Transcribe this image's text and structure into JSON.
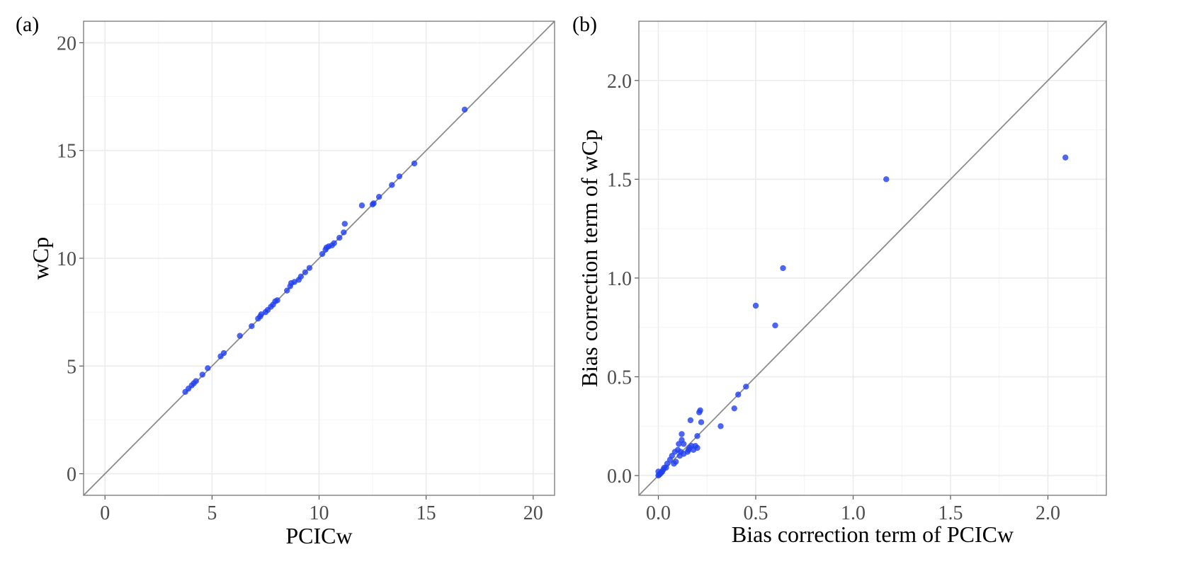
{
  "chart_data": [
    {
      "type": "scatter",
      "panel_label": "(a)",
      "xlabel": "PCICw",
      "ylabel": "wCp",
      "xlim": [
        -1,
        21
      ],
      "ylim": [
        -1,
        21
      ],
      "xticks": [
        0,
        5,
        10,
        15,
        20
      ],
      "yticks": [
        0,
        5,
        10,
        15,
        20
      ],
      "xtick_labels": [
        "0",
        "5",
        "10",
        "15",
        "20"
      ],
      "ytick_labels": [
        "0",
        "5",
        "10",
        "15",
        "20"
      ],
      "reference_line": "y = x",
      "grid": true,
      "point_color": "#1f3ef0",
      "line_color": "#8c8c8c",
      "points": [
        [
          3.75,
          3.8
        ],
        [
          3.9,
          3.95
        ],
        [
          4.05,
          4.1
        ],
        [
          4.15,
          4.2
        ],
        [
          4.25,
          4.3
        ],
        [
          4.55,
          4.6
        ],
        [
          4.8,
          4.9
        ],
        [
          5.4,
          5.45
        ],
        [
          5.55,
          5.6
        ],
        [
          6.3,
          6.4
        ],
        [
          6.85,
          6.85
        ],
        [
          7.15,
          7.2
        ],
        [
          7.25,
          7.3
        ],
        [
          7.3,
          7.4
        ],
        [
          7.5,
          7.5
        ],
        [
          7.6,
          7.6
        ],
        [
          7.75,
          7.75
        ],
        [
          7.85,
          7.85
        ],
        [
          7.95,
          8.0
        ],
        [
          8.05,
          8.05
        ],
        [
          8.5,
          8.5
        ],
        [
          8.65,
          8.7
        ],
        [
          8.7,
          8.85
        ],
        [
          8.85,
          8.9
        ],
        [
          9.05,
          9.0
        ],
        [
          9.15,
          9.15
        ],
        [
          9.35,
          9.35
        ],
        [
          9.55,
          9.55
        ],
        [
          10.15,
          10.2
        ],
        [
          10.3,
          10.4
        ],
        [
          10.35,
          10.5
        ],
        [
          10.45,
          10.55
        ],
        [
          10.6,
          10.6
        ],
        [
          10.7,
          10.7
        ],
        [
          10.95,
          10.95
        ],
        [
          11.15,
          11.2
        ],
        [
          11.2,
          11.6
        ],
        [
          12.0,
          12.45
        ],
        [
          12.5,
          12.5
        ],
        [
          12.55,
          12.55
        ],
        [
          12.8,
          12.85
        ],
        [
          13.4,
          13.4
        ],
        [
          13.75,
          13.8
        ],
        [
          14.45,
          14.4
        ],
        [
          16.8,
          16.9
        ]
      ]
    },
    {
      "type": "scatter",
      "panel_label": "(b)",
      "xlabel": "Bias correction term of PCICw",
      "ylabel": "Bias correction term of wCp",
      "xlim": [
        -0.1,
        2.3
      ],
      "ylim": [
        -0.1,
        2.3
      ],
      "xticks": [
        0.0,
        0.5,
        1.0,
        1.5,
        2.0
      ],
      "yticks": [
        0.0,
        0.5,
        1.0,
        1.5,
        2.0
      ],
      "xtick_labels": [
        "0.0",
        "0.5",
        "1.0",
        "1.5",
        "2.0"
      ],
      "ytick_labels": [
        "0.0",
        "0.5",
        "1.0",
        "1.5",
        "2.0"
      ],
      "reference_line": "y = x",
      "grid": true,
      "point_color": "#1f3ef0",
      "line_color": "#8c8c8c",
      "points": [
        [
          0.0,
          0.0
        ],
        [
          0.005,
          0.005
        ],
        [
          0.01,
          0.01
        ],
        [
          0.0,
          0.02
        ],
        [
          0.015,
          0.015
        ],
        [
          0.02,
          0.02
        ],
        [
          0.025,
          0.03
        ],
        [
          0.03,
          0.04
        ],
        [
          0.04,
          0.04
        ],
        [
          0.045,
          0.06
        ],
        [
          0.06,
          0.08
        ],
        [
          0.07,
          0.1
        ],
        [
          0.08,
          0.06
        ],
        [
          0.085,
          0.12
        ],
        [
          0.09,
          0.07
        ],
        [
          0.1,
          0.13
        ],
        [
          0.105,
          0.16
        ],
        [
          0.11,
          0.1
        ],
        [
          0.115,
          0.12
        ],
        [
          0.12,
          0.21
        ],
        [
          0.12,
          0.18
        ],
        [
          0.13,
          0.16
        ],
        [
          0.13,
          0.11
        ],
        [
          0.15,
          0.12
        ],
        [
          0.155,
          0.13
        ],
        [
          0.16,
          0.14
        ],
        [
          0.165,
          0.28
        ],
        [
          0.17,
          0.15
        ],
        [
          0.18,
          0.13
        ],
        [
          0.19,
          0.15
        ],
        [
          0.2,
          0.14
        ],
        [
          0.2,
          0.2
        ],
        [
          0.21,
          0.32
        ],
        [
          0.215,
          0.33
        ],
        [
          0.22,
          0.27
        ],
        [
          0.32,
          0.25
        ],
        [
          0.39,
          0.34
        ],
        [
          0.41,
          0.41
        ],
        [
          0.45,
          0.45
        ],
        [
          0.5,
          0.86
        ],
        [
          0.6,
          0.76
        ],
        [
          0.64,
          1.05
        ],
        [
          1.17,
          1.5
        ],
        [
          2.09,
          1.61
        ]
      ]
    }
  ]
}
